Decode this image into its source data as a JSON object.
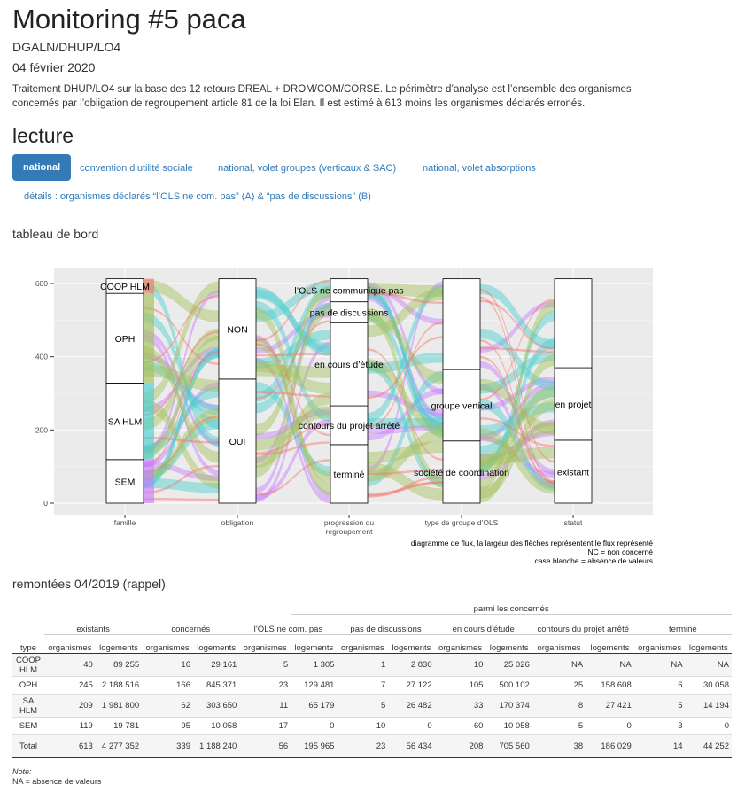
{
  "page": {
    "title": "Monitoring #5 paca",
    "subtitle": "DGALN/DHUP/LO4",
    "date": "04 février 2020",
    "description": "Traitement DHUP/LO4 sur la base des 12 retours DREAL + DROM/COM/CORSE. Le périmètre d’analyse est l’ensemble des organismes concernés par l’obligation de regroupement article 81 de la loi Elan. Il est estimé à 613 moins les organismes déclarés erronés.",
    "section_title": "lecture"
  },
  "tabs": [
    {
      "label": "national",
      "active": true
    },
    {
      "label": "convention d’utilité sociale",
      "active": false
    },
    {
      "label": "national, volet groupes (verticaux & SAC)",
      "active": false
    },
    {
      "label": "national, volet absorptions",
      "active": false
    },
    {
      "label": "détails : organismes déclarés “l’OLS ne com. pas” (A) & “pas de discussions” (B)",
      "active": false
    }
  ],
  "dashboard_title": "tableau de bord",
  "chart_data": {
    "type": "alluvial",
    "yticks": [
      0,
      200,
      400,
      600
    ],
    "ylim": [
      0,
      613
    ],
    "axes": [
      {
        "label": "famille",
        "strata": [
          {
            "name": "SEM",
            "value": 119
          },
          {
            "name": "SA HLM",
            "value": 209
          },
          {
            "name": "OPH",
            "value": 245
          },
          {
            "name": "COOP HLM",
            "value": 40
          }
        ]
      },
      {
        "label": "obligation",
        "strata": [
          {
            "name": "OUI",
            "value": 339
          },
          {
            "name": "NON",
            "value": 274
          }
        ]
      },
      {
        "label": "progression du regroupement",
        "strata": [
          {
            "name": "terminé",
            "value": 160
          },
          {
            "name": "contours du projet arrêté",
            "value": 106
          },
          {
            "name": "en cours d’étude",
            "value": 227
          },
          {
            "name": "pas de discussions",
            "value": 57
          },
          {
            "name": "l’OLS ne communique pas",
            "value": 63
          }
        ]
      },
      {
        "label": "type de groupe d’OLS",
        "strata": [
          {
            "name": "société de coordination",
            "value": 170
          },
          {
            "name": "groupe vertical",
            "value": 195
          },
          {
            "name": "",
            "value": 248
          }
        ]
      },
      {
        "label": "statut",
        "strata": [
          {
            "name": "existant",
            "value": 172
          },
          {
            "name": "en projet",
            "value": 198
          },
          {
            "name": "",
            "value": 243
          }
        ]
      }
    ],
    "flow_colors": {
      "COOP HLM": "#f8766d",
      "OPH": "#a3c25a",
      "SA HLM": "#4ccfcf",
      "SEM": "#c77cff"
    },
    "caption": [
      "diagramme de flux, la largeur des flèches représentent le flux représenté",
      "NC = non concerné",
      "case blanche = absence de valeurs"
    ]
  },
  "table_title": "remontées 04/2019 (rappel)",
  "table": {
    "top_header": "parmi les concernés",
    "groups": [
      "existants",
      "concernés",
      "l’OLS ne com. pas",
      "pas de discussions",
      "en cours d’étude",
      "contours du projet arrêté",
      "terminé"
    ],
    "type_label": "type",
    "col_org": "organismes",
    "col_log": "logements",
    "rows": [
      {
        "type": "COOP HLM",
        "values": [
          "40",
          "89 255",
          "16",
          "29 161",
          "5",
          "1 305",
          "1",
          "2 830",
          "10",
          "25 026",
          "NA",
          "NA",
          "NA",
          "NA"
        ]
      },
      {
        "type": "OPH",
        "values": [
          "245",
          "2 188 516",
          "166",
          "845 371",
          "23",
          "129 481",
          "7",
          "27 122",
          "105",
          "500 102",
          "25",
          "158 608",
          "6",
          "30 058"
        ]
      },
      {
        "type": "SA HLM",
        "values": [
          "209",
          "1 981 800",
          "62",
          "303 650",
          "11",
          "65 179",
          "5",
          "26 482",
          "33",
          "170 374",
          "8",
          "27 421",
          "5",
          "14 194"
        ]
      },
      {
        "type": "SEM",
        "values": [
          "119",
          "19 781",
          "95",
          "10 058",
          "17",
          "0",
          "10",
          "0",
          "60",
          "10 058",
          "5",
          "0",
          "3",
          "0"
        ]
      },
      {
        "type": "Total",
        "values": [
          "613",
          "4 277 352",
          "339",
          "1 188 240",
          "56",
          "195 965",
          "23",
          "56 434",
          "208",
          "705 560",
          "38",
          "186 029",
          "14",
          "44 252"
        ]
      }
    ],
    "note_label": "Note:",
    "note_text": "NA = absence de valeurs"
  }
}
